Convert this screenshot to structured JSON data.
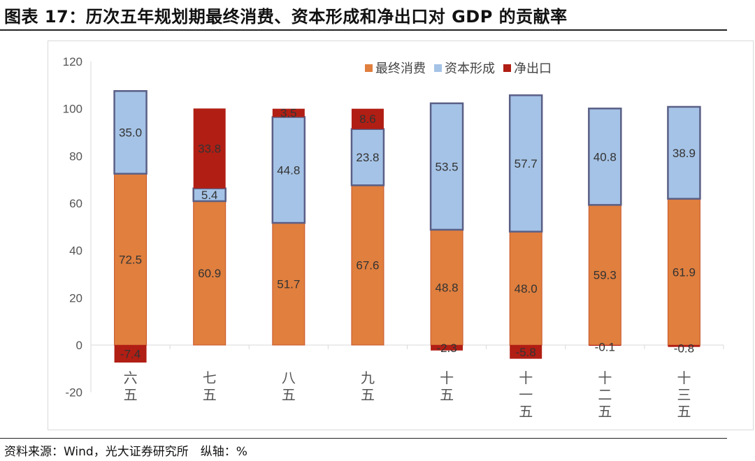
{
  "title": "图表 17：历次五年规划期最终消费、资本形成和净出口对 GDP 的贡献率",
  "source": "资料来源：Wind，光大证券研究所　纵轴：%",
  "chart_data": {
    "type": "bar",
    "stacked": true,
    "categories": [
      "六五",
      "七五",
      "八五",
      "九五",
      "十五",
      "十一五",
      "十二五",
      "十三五"
    ],
    "series": [
      {
        "name": "最终消费",
        "color": "#e07f3e",
        "values": [
          72.5,
          60.9,
          51.7,
          67.6,
          48.8,
          48.0,
          59.3,
          61.9
        ]
      },
      {
        "name": "资本形成",
        "color": "#a5c3e6",
        "values": [
          35.0,
          5.4,
          44.8,
          23.8,
          53.5,
          57.7,
          40.8,
          38.9
        ]
      },
      {
        "name": "净出口",
        "color": "#b11e14",
        "values": [
          -7.4,
          33.8,
          3.5,
          8.6,
          -2.3,
          -5.8,
          -0.1,
          -0.8
        ]
      }
    ],
    "yticks": [
      -20,
      0,
      20,
      40,
      60,
      80,
      100,
      120
    ],
    "ylim": [
      -20,
      120
    ],
    "legend": "top-right",
    "grid": false
  }
}
